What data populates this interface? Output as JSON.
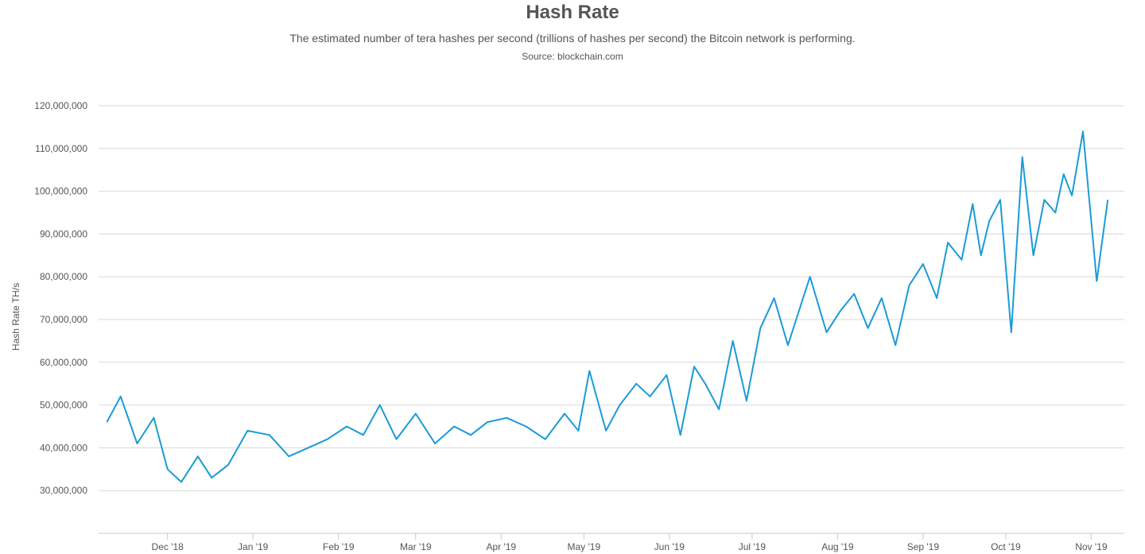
{
  "chart_data": {
    "type": "line",
    "title": "Hash Rate",
    "subtitle": "The estimated number of tera hashes per second (trillions of hashes per second) the Bitcoin network is performing.",
    "source": "Source: blockchain.com",
    "ylabel": "Hash Rate TH/s",
    "xlabel": "",
    "ylim": [
      20000000,
      120000000
    ],
    "y_ticks": [
      30000000,
      40000000,
      50000000,
      60000000,
      70000000,
      80000000,
      90000000,
      100000000,
      110000000,
      120000000
    ],
    "y_tick_labels": [
      "30,000,000",
      "40,000,000",
      "50,000,000",
      "60,000,000",
      "70,000,000",
      "80,000,000",
      "90,000,000",
      "100,000,000",
      "110,000,000",
      "120,000,000"
    ],
    "x_range": [
      "2018-11-06",
      "2019-11-13"
    ],
    "x_ticks": [
      {
        "date": "2018-12-01",
        "label": "Dec '18"
      },
      {
        "date": "2019-01-01",
        "label": "Jan '19"
      },
      {
        "date": "2019-02-01",
        "label": "Feb '19"
      },
      {
        "date": "2019-03-01",
        "label": "Mar '19"
      },
      {
        "date": "2019-04-01",
        "label": "Apr '19"
      },
      {
        "date": "2019-05-01",
        "label": "May '19"
      },
      {
        "date": "2019-06-01",
        "label": "Jun '19"
      },
      {
        "date": "2019-07-01",
        "label": "Jul '19"
      },
      {
        "date": "2019-08-01",
        "label": "Aug '19"
      },
      {
        "date": "2019-09-01",
        "label": "Sep '19"
      },
      {
        "date": "2019-10-01",
        "label": "Oct '19"
      },
      {
        "date": "2019-11-01",
        "label": "Nov '19"
      }
    ],
    "grid": true,
    "legend": "none",
    "line_color": "#1a9bd7",
    "series": [
      {
        "x": [
          "2018-11-09",
          "2018-11-14",
          "2018-11-20",
          "2018-11-26",
          "2018-12-01",
          "2018-12-06",
          "2018-12-12",
          "2018-12-17",
          "2018-12-23",
          "2018-12-30",
          "2019-01-07",
          "2019-01-14",
          "2019-01-21",
          "2019-01-28",
          "2019-02-04",
          "2019-02-10",
          "2019-02-16",
          "2019-02-22",
          "2019-03-01",
          "2019-03-08",
          "2019-03-15",
          "2019-03-21",
          "2019-03-27",
          "2019-04-03",
          "2019-04-10",
          "2019-04-17",
          "2019-04-24",
          "2019-04-29",
          "2019-05-03",
          "2019-05-09",
          "2019-05-14",
          "2019-05-20",
          "2019-05-25",
          "2019-05-31",
          "2019-06-05",
          "2019-06-10",
          "2019-06-14",
          "2019-06-19",
          "2019-06-24",
          "2019-06-29",
          "2019-07-04",
          "2019-07-09",
          "2019-07-14",
          "2019-07-17",
          "2019-07-22",
          "2019-07-28",
          "2019-08-02",
          "2019-08-07",
          "2019-08-12",
          "2019-08-17",
          "2019-08-22",
          "2019-08-27",
          "2019-09-01",
          "2019-09-06",
          "2019-09-10",
          "2019-09-15",
          "2019-09-19",
          "2019-09-22",
          "2019-09-25",
          "2019-09-29",
          "2019-10-03",
          "2019-10-07",
          "2019-10-11",
          "2019-10-15",
          "2019-10-19",
          "2019-10-22",
          "2019-10-25",
          "2019-10-29",
          "2019-11-03",
          "2019-11-07"
        ],
        "y": [
          46000000,
          52000000,
          41000000,
          47000000,
          35000000,
          32000000,
          38000000,
          33000000,
          36000000,
          44000000,
          43000000,
          38000000,
          40000000,
          42000000,
          45000000,
          43000000,
          50000000,
          42000000,
          48000000,
          41000000,
          45000000,
          43000000,
          46000000,
          47000000,
          45000000,
          42000000,
          48000000,
          44000000,
          58000000,
          44000000,
          50000000,
          55000000,
          52000000,
          57000000,
          43000000,
          59000000,
          55000000,
          49000000,
          65000000,
          51000000,
          68000000,
          75000000,
          64000000,
          70000000,
          80000000,
          67000000,
          72000000,
          76000000,
          68000000,
          75000000,
          64000000,
          78000000,
          83000000,
          75000000,
          88000000,
          84000000,
          97000000,
          85000000,
          93000000,
          98000000,
          67000000,
          108000000,
          85000000,
          98000000,
          95000000,
          104000000,
          99000000,
          114000000,
          79000000,
          98000000
        ],
        "values_note": ""
      }
    ]
  }
}
